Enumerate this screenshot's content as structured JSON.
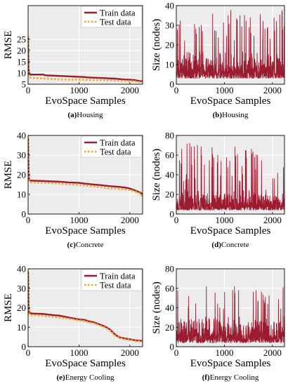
{
  "chart_data": [
    {
      "type": "line",
      "panel_label": "(a)",
      "caption": "Housing",
      "xlabel": "EvoSpace Samples",
      "ylabel": "RMSE",
      "xlim": [
        0,
        2250
      ],
      "ylim": [
        5,
        40
      ],
      "xticks": [
        0,
        1000,
        2000
      ],
      "yticks": [
        5,
        10,
        15,
        20,
        25
      ],
      "grid": true,
      "legend": "top-right",
      "series": [
        {
          "name": "Train data",
          "color": "#9b1b30",
          "style": "solid",
          "x": [
            0,
            5,
            10,
            20,
            40,
            100,
            200,
            300,
            330,
            400,
            500,
            600,
            700,
            800,
            900,
            1000,
            1100,
            1200,
            1300,
            1400,
            1500,
            1600,
            1700,
            1800,
            1900,
            2000,
            2100,
            2200,
            2250
          ],
          "y": [
            26,
            18,
            12,
            9.6,
            9.3,
            9.3,
            9.3,
            9.3,
            9.0,
            8.9,
            8.8,
            8.7,
            8.6,
            8.5,
            8.4,
            8.3,
            8.2,
            8.0,
            7.9,
            7.8,
            7.7,
            7.6,
            7.5,
            7.3,
            7.1,
            7.0,
            6.8,
            6.4,
            6.3
          ]
        },
        {
          "name": "Test data",
          "color": "#f5a623",
          "style": "dotted",
          "x": [
            0,
            5,
            10,
            20,
            40,
            100,
            200,
            300,
            400,
            500,
            600,
            700,
            800,
            900,
            1000,
            1100,
            1200,
            1300,
            1400,
            1500,
            1600,
            1700,
            1800,
            1900,
            2000,
            2100,
            2200,
            2250
          ],
          "y": [
            26.5,
            14,
            9,
            8.0,
            7.9,
            7.8,
            7.7,
            7.6,
            7.5,
            7.3,
            7.2,
            7.2,
            7.1,
            7.0,
            7.0,
            7.0,
            6.9,
            6.9,
            6.8,
            6.8,
            6.7,
            6.7,
            6.6,
            6.5,
            6.4,
            6.3,
            6.0,
            5.9
          ]
        }
      ]
    },
    {
      "type": "line",
      "panel_label": "(b)",
      "caption": "Housing",
      "xlabel": "EvoSpace Samples",
      "ylabel": "Size (nodes)",
      "xlim": [
        0,
        2250
      ],
      "ylim": [
        0,
        40
      ],
      "xticks": [
        0,
        1000,
        2000
      ],
      "yticks": [
        0,
        10,
        20,
        30,
        40
      ],
      "grid": true,
      "series": [
        {
          "color": "#9b1b30",
          "generator": {
            "seed": 11,
            "base": 3,
            "spread": 14,
            "spike_prob": 0.06,
            "spike_min": 22,
            "spike_max": 38
          }
        }
      ]
    },
    {
      "type": "line",
      "panel_label": "(c)",
      "caption": "Concrete",
      "xlabel": "EvoSpace Samples",
      "ylabel": "RMSE",
      "xlim": [
        0,
        2250
      ],
      "ylim": [
        0,
        40
      ],
      "xticks": [
        0,
        1000,
        2000
      ],
      "yticks": [
        0,
        10,
        20,
        30,
        40
      ],
      "grid": true,
      "legend": "top-right",
      "series": [
        {
          "name": "Train data",
          "color": "#9b1b30",
          "style": "solid",
          "x": [
            0,
            5,
            10,
            20,
            40,
            100,
            200,
            300,
            400,
            500,
            600,
            700,
            800,
            900,
            1000,
            1100,
            1200,
            1300,
            1400,
            1500,
            1600,
            1700,
            1800,
            1900,
            2000,
            2100,
            2200,
            2250
          ],
          "y": [
            38.5,
            30,
            22,
            17.5,
            17.0,
            17.0,
            16.9,
            16.8,
            16.7,
            16.6,
            16.5,
            16.3,
            16.1,
            16.0,
            15.9,
            15.5,
            15.3,
            15.0,
            14.8,
            14.5,
            14.2,
            14.0,
            13.8,
            13.5,
            13.0,
            12.0,
            11.0,
            10.0
          ]
        },
        {
          "name": "Test data",
          "color": "#f5a623",
          "style": "dotted",
          "x": [
            0,
            5,
            10,
            20,
            40,
            100,
            200,
            300,
            400,
            500,
            600,
            700,
            800,
            900,
            1000,
            1100,
            1200,
            1300,
            1400,
            1500,
            1600,
            1700,
            1800,
            1900,
            2000,
            2100,
            2200,
            2250
          ],
          "y": [
            39,
            28,
            20,
            16.5,
            16.2,
            16.1,
            16.0,
            15.9,
            15.8,
            15.7,
            15.5,
            15.3,
            15.1,
            15.0,
            14.8,
            14.6,
            14.3,
            14.0,
            13.7,
            13.4,
            13.0,
            12.9,
            12.8,
            12.5,
            12.2,
            11.5,
            10.5,
            8.8
          ]
        }
      ]
    },
    {
      "type": "line",
      "panel_label": "(d)",
      "caption": "Concrete",
      "xlabel": "EvoSpace Samples",
      "ylabel": "Size (nodes)",
      "xlim": [
        0,
        2250
      ],
      "ylim": [
        0,
        80
      ],
      "xticks": [
        0,
        1000,
        2000
      ],
      "yticks": [
        0,
        20,
        40,
        60,
        80
      ],
      "grid": true,
      "series": [
        {
          "color": "#9b1b30",
          "generator": {
            "seed": 23,
            "base": 4,
            "spread": 22,
            "spike_prob": 0.06,
            "spike_min": 32,
            "spike_max": 72
          }
        }
      ]
    },
    {
      "type": "line",
      "panel_label": "(e)",
      "caption": "Energy Cooling",
      "xlabel": "EvoSpace Samples",
      "ylabel": "RMSE",
      "xlim": [
        0,
        2250
      ],
      "ylim": [
        0,
        40
      ],
      "xticks": [
        0,
        1000,
        2000
      ],
      "yticks": [
        0,
        10,
        20,
        30,
        40
      ],
      "grid": true,
      "legend": "top-right",
      "series": [
        {
          "name": "Train data",
          "color": "#9b1b30",
          "style": "solid",
          "x": [
            0,
            5,
            10,
            20,
            40,
            100,
            200,
            300,
            400,
            500,
            600,
            700,
            800,
            900,
            1000,
            1100,
            1200,
            1300,
            1400,
            1500,
            1600,
            1700,
            1750,
            1800,
            1900,
            2000,
            2100,
            2200,
            2250
          ],
          "y": [
            38.5,
            30,
            22,
            17.5,
            17.2,
            17.0,
            16.9,
            16.8,
            16.5,
            16.2,
            16.0,
            15.5,
            15.0,
            14.5,
            14.0,
            13.8,
            13.0,
            12.5,
            11.5,
            10.5,
            9.0,
            6.5,
            5.5,
            4.8,
            4.2,
            3.8,
            3.3,
            3.1,
            3.0
          ]
        },
        {
          "name": "Test data",
          "color": "#f5a623",
          "style": "dotted",
          "x": [
            0,
            5,
            10,
            20,
            40,
            100,
            200,
            300,
            400,
            500,
            600,
            700,
            800,
            900,
            1000,
            1100,
            1200,
            1300,
            1400,
            1500,
            1600,
            1700,
            1750,
            1800,
            1900,
            2000,
            2100,
            2200,
            2250
          ],
          "y": [
            39,
            28,
            20,
            16.5,
            16.2,
            16.1,
            16.0,
            15.8,
            15.5,
            15.2,
            15.0,
            14.7,
            14.3,
            13.9,
            13.5,
            13.2,
            12.5,
            12.0,
            11.0,
            10.0,
            8.5,
            6.0,
            5.2,
            4.5,
            3.9,
            3.5,
            3.0,
            2.8,
            2.7
          ]
        }
      ]
    },
    {
      "type": "line",
      "panel_label": "(f)",
      "caption": "Energy Cooling",
      "xlabel": "EvoSpace Samples",
      "ylabel": "Size (nodes)",
      "xlim": [
        0,
        2250
      ],
      "ylim": [
        0,
        80
      ],
      "xticks": [
        0,
        1000,
        2000
      ],
      "yticks": [
        0,
        20,
        40,
        60,
        80
      ],
      "grid": true,
      "series": [
        {
          "color": "#9b1b30",
          "generator": {
            "seed": 37,
            "base": 4,
            "spread": 30,
            "spike_prob": 0.05,
            "spike_min": 38,
            "spike_max": 62
          }
        }
      ]
    }
  ],
  "colors": {
    "plot_background": "#ececec",
    "grid": "#ffffff",
    "frame": "#000000"
  }
}
